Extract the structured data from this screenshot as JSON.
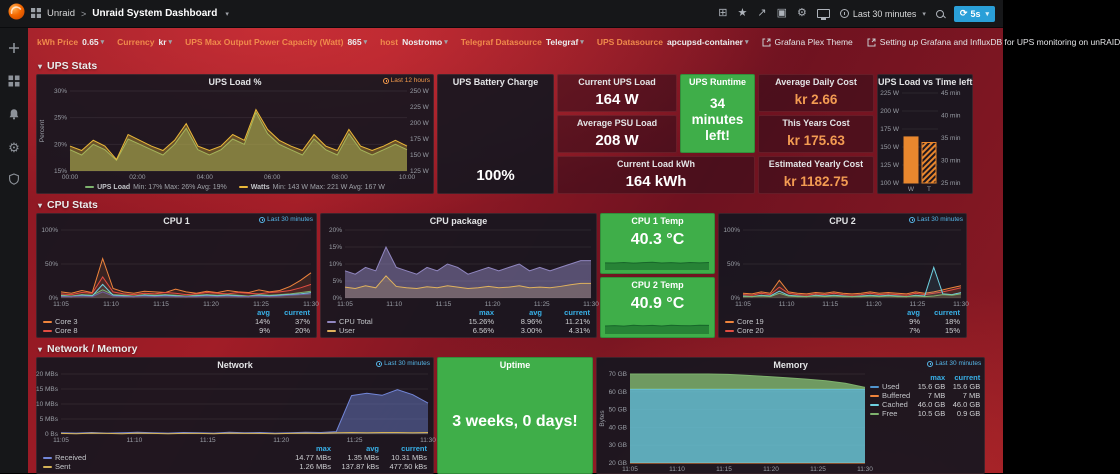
{
  "nav": {
    "app": "Unraid",
    "title": "Unraid System Dashboard",
    "time_range": "Last 30 minutes",
    "refresh": "5s"
  },
  "icons": {
    "caret": "▾",
    "chevron": "▾",
    "star": "★",
    "share": "↗",
    "gear": "⚙",
    "add_panel": "⊞",
    "save": "▣",
    "refresh": "⟳",
    "sep": ">"
  },
  "variables": [
    {
      "label": "kWh Price",
      "value": "0.65"
    },
    {
      "label": "Currency",
      "value": "kr"
    },
    {
      "label": "UPS Max Output Power Capacity (Watt)",
      "value": "865"
    },
    {
      "label": "host",
      "value": "Nostromo"
    },
    {
      "label": "Telegraf Datasource",
      "value": "Telegraf"
    },
    {
      "label": "UPS Datasource",
      "value": "apcupsd-container"
    }
  ],
  "links": [
    {
      "label": "Grafana Plex Theme"
    },
    {
      "label": "Setting up Grafana and InfluxDB for UPS monitoring on unRAID"
    }
  ],
  "rows": {
    "ups": "UPS Stats",
    "cpu": "CPU Stats",
    "net": "Network / Memory"
  },
  "panels": {
    "ups_load": {
      "title": "UPS Load %",
      "badge": "Last 12 hours",
      "legend": [
        {
          "name": "UPS Load",
          "color": "#7eb26d",
          "stats": "Min: 17% Max: 26% Avg: 19%"
        },
        {
          "name": "Watts",
          "color": "#eab839",
          "stats": "Min: 143 W Max: 221 W Avg: 167 W"
        }
      ]
    },
    "battery": {
      "title": "UPS Battery Charge",
      "value": "100%"
    },
    "current_load": {
      "title": "Current UPS Load",
      "value": "164 W"
    },
    "runtime": {
      "title": "UPS Runtime",
      "value": "34 minutes left!"
    },
    "psu_load": {
      "title": "Average PSU Load",
      "value": "208 W"
    },
    "load_kwh": {
      "title": "Current Load kWh",
      "value": "164 kWh"
    },
    "daily_cost": {
      "title": "Average Daily Cost",
      "value": "kr 2.66"
    },
    "years_cost": {
      "title": "This Years Cost",
      "value": "kr 175.63"
    },
    "yearly_est": {
      "title": "Estimated Yearly Cost",
      "value": "kr 1182.75"
    },
    "load_time": {
      "title": "UPS Load vs Time left"
    },
    "cpu1": {
      "title": "CPU 1",
      "badge": "Last 30 minutes",
      "legend_headers": [
        "avg",
        "current"
      ],
      "legend": [
        {
          "name": "Core 3",
          "color": "#ef843c",
          "vals": [
            "14%",
            "37%"
          ]
        },
        {
          "name": "Core 8",
          "color": "#e24d42",
          "vals": [
            "9%",
            "20%"
          ]
        }
      ]
    },
    "cpu_pkg": {
      "title": "CPU package",
      "legend_headers": [
        "max",
        "avg",
        "current"
      ],
      "legend": [
        {
          "name": "CPU Total",
          "color": "#9187c1",
          "vals": [
            "15.26%",
            "8.96%",
            "11.21%"
          ]
        },
        {
          "name": "User",
          "color": "#e0b25d",
          "vals": [
            "6.56%",
            "3.00%",
            "4.31%"
          ]
        }
      ]
    },
    "cpu1_temp": {
      "title": "CPU 1 Temp",
      "value": "40.3 °C"
    },
    "cpu2_temp": {
      "title": "CPU 2 Temp",
      "value": "40.9 °C"
    },
    "cpu2": {
      "title": "CPU 2",
      "badge": "Last 30 minutes",
      "legend_headers": [
        "avg",
        "current"
      ],
      "legend": [
        {
          "name": "Core 19",
          "color": "#ef843c",
          "vals": [
            "9%",
            "18%"
          ]
        },
        {
          "name": "Core 20",
          "color": "#e24d42",
          "vals": [
            "7%",
            "15%"
          ]
        }
      ]
    },
    "network": {
      "title": "Network",
      "badge": "Last 30 minutes",
      "legend_headers": [
        "max",
        "avg",
        "current"
      ],
      "legend": [
        {
          "name": "Received",
          "color": "#7286d8",
          "vals": [
            "14.77 MBs",
            "1.35 MBs",
            "10.31 MBs"
          ]
        },
        {
          "name": "Sent",
          "color": "#d4b257",
          "vals": [
            "1.26 MBs",
            "137.87 kBs",
            "477.50 kBs"
          ]
        }
      ]
    },
    "uptime": {
      "title": "Uptime",
      "value": "3 weeks, 0 days!"
    },
    "memory": {
      "title": "Memory",
      "badge": "Last 30 minutes",
      "legend_headers": [
        "max",
        "current"
      ],
      "legend": [
        {
          "name": "Used",
          "color": "#5195ce",
          "vals": [
            "15.6 GB",
            "15.6 GB"
          ]
        },
        {
          "name": "Buffered",
          "color": "#ef843c",
          "vals": [
            "7 MB",
            "7 MB"
          ]
        },
        {
          "name": "Cached",
          "color": "#6ed0e0",
          "vals": [
            "46.0 GB",
            "46.0 GB"
          ]
        },
        {
          "name": "Free",
          "color": "#7eb26d",
          "vals": [
            "10.5 GB",
            "0.9 GB"
          ]
        }
      ]
    }
  },
  "colors": {
    "accent_orange": "#eb7b18",
    "green": "#3fae49",
    "badge_blue": "#56b6e8",
    "background_red": "#8a1722"
  },
  "chart_data": {
    "ups_load": {
      "type": "area",
      "title": "UPS Load %",
      "ylabel": "Percent",
      "x_labels": [
        "00:00",
        "02:00",
        "04:00",
        "06:00",
        "08:00",
        "10:00"
      ],
      "axes": {
        "left": {
          "min": 15,
          "max": 30,
          "ticks": [
            "15%",
            "20%",
            "25%",
            "30%"
          ]
        },
        "right": {
          "min": 125,
          "max": 250,
          "ticks": [
            "125 W",
            "150 W",
            "175 W",
            "200 W",
            "225 W",
            "250 W"
          ]
        }
      },
      "series": [
        {
          "name": "UPS Load",
          "axis": "left",
          "color": "#7eb26d",
          "fill": 0.45,
          "points": [
            19,
            18,
            20,
            19,
            17,
            21,
            20,
            19,
            18,
            20,
            23,
            19,
            18,
            19,
            21,
            20,
            26,
            22,
            20,
            19,
            18,
            21,
            19,
            18,
            22,
            19,
            18,
            19,
            20,
            19
          ]
        },
        {
          "name": "Watts",
          "axis": "right",
          "color": "#eab839",
          "fill": 0.35,
          "points": [
            164,
            157,
            173,
            164,
            143,
            182,
            173,
            164,
            157,
            173,
            199,
            164,
            157,
            164,
            182,
            173,
            221,
            190,
            173,
            164,
            157,
            182,
            164,
            157,
            190,
            164,
            157,
            164,
            173,
            164
          ]
        }
      ]
    },
    "battery": {
      "type": "gauge",
      "min": 0,
      "max": 100,
      "value": 100,
      "ticks": [
        "0",
        "50",
        "100"
      ],
      "color": "#3fae49"
    },
    "load_time": {
      "type": "bar",
      "color": "#e8872e",
      "axes": {
        "left": {
          "min": 100,
          "max": 225,
          "ticks": [
            "100 W",
            "125 W",
            "150 W",
            "175 W",
            "200 W",
            "225 W"
          ]
        },
        "right": {
          "min": 25,
          "max": 45,
          "ticks": [
            "25 min",
            "30 min",
            "35 min",
            "40 min",
            "45 min"
          ]
        }
      },
      "bars": [
        {
          "label": "W",
          "value": 164,
          "axis": "left"
        },
        {
          "label": "T",
          "value": 34,
          "axis": "right",
          "striped": true
        }
      ]
    },
    "cpu1": {
      "type": "area",
      "x_labels": [
        "11:05",
        "11:10",
        "11:15",
        "11:20",
        "11:25",
        "11:30"
      ],
      "axes": {
        "left": {
          "min": 0,
          "max": 100,
          "ticks": [
            "0%",
            "50%",
            "100%"
          ]
        }
      },
      "series": [
        {
          "name": "Core 3",
          "color": "#ef843c",
          "fill": 0.12,
          "points": [
            9,
            7,
            11,
            8,
            58,
            14,
            9,
            7,
            10,
            9,
            8,
            13,
            9,
            7,
            10,
            8,
            11,
            9,
            8,
            12,
            9,
            11,
            17,
            26,
            37
          ]
        },
        {
          "name": "Core 8",
          "color": "#e24d42",
          "fill": 0.12,
          "points": [
            6,
            5,
            8,
            7,
            31,
            9,
            6,
            5,
            7,
            6,
            8,
            7,
            5,
            6,
            8,
            7,
            6,
            8,
            7,
            6,
            8,
            9,
            11,
            15,
            20
          ]
        },
        {
          "color": "#7eb26d",
          "fill": 0.1,
          "points": [
            4,
            3,
            5,
            4,
            12,
            5,
            4,
            3,
            5,
            4,
            5,
            4,
            3,
            4,
            5,
            4,
            5,
            4,
            3,
            5,
            4,
            5,
            6,
            8,
            10
          ]
        },
        {
          "color": "#6ed0e0",
          "fill": 0.1,
          "points": [
            3,
            2,
            4,
            3,
            20,
            4,
            3,
            2,
            4,
            3,
            4,
            3,
            2,
            3,
            4,
            3,
            4,
            3,
            2,
            4,
            3,
            4,
            5,
            6,
            8
          ]
        },
        {
          "color": "#705da0",
          "fill": 0.1,
          "points": [
            2,
            2,
            3,
            2,
            9,
            3,
            2,
            2,
            3,
            2,
            3,
            2,
            2,
            2,
            3,
            2,
            3,
            2,
            2,
            3,
            2,
            3,
            4,
            5,
            6
          ]
        }
      ]
    },
    "cpu_pkg": {
      "type": "area",
      "x_labels": [
        "11:05",
        "11:10",
        "11:15",
        "11:20",
        "11:25",
        "11:30"
      ],
      "axes": {
        "left": {
          "min": 0,
          "max": 20,
          "ticks": [
            "0%",
            "5%",
            "10%",
            "15%",
            "20%"
          ]
        }
      },
      "series": [
        {
          "name": "CPU Total",
          "color": "#9187c1",
          "fill": 0.5,
          "points": [
            8,
            7,
            9,
            8,
            15,
            9,
            8,
            7,
            9,
            8,
            10,
            9,
            7,
            8,
            9,
            8,
            9,
            10,
            8,
            9,
            8,
            9,
            10,
            11,
            11
          ]
        },
        {
          "name": "User",
          "color": "#e0b25d",
          "fill": 0.2,
          "points": [
            3.2,
            2.8,
            3.6,
            3,
            6.5,
            3.4,
            3,
            2.8,
            3.3,
            3,
            3.6,
            3.2,
            2.8,
            3,
            3.4,
            3,
            3.2,
            3.6,
            3,
            3.2,
            3,
            3.4,
            3.9,
            4.3,
            4.3
          ]
        }
      ]
    },
    "cpu2": {
      "type": "area",
      "x_labels": [
        "11:05",
        "11:10",
        "11:15",
        "11:20",
        "11:25",
        "11:30"
      ],
      "axes": {
        "left": {
          "min": 0,
          "max": 100,
          "ticks": [
            "0%",
            "50%",
            "100%"
          ]
        }
      },
      "series": [
        {
          "name": "Core 19",
          "color": "#ef843c",
          "fill": 0.12,
          "points": [
            7,
            6,
            9,
            7,
            26,
            9,
            7,
            6,
            8,
            7,
            9,
            7,
            6,
            7,
            9,
            7,
            8,
            7,
            6,
            9,
            7,
            9,
            12,
            15,
            18
          ]
        },
        {
          "name": "Core 20",
          "color": "#e24d42",
          "fill": 0.12,
          "points": [
            5,
            4,
            7,
            5,
            16,
            7,
            5,
            4,
            6,
            5,
            7,
            5,
            4,
            5,
            7,
            5,
            6,
            5,
            4,
            7,
            5,
            7,
            9,
            12,
            15
          ]
        },
        {
          "color": "#6ed0e0",
          "fill": 0.1,
          "points": [
            3,
            2,
            4,
            3,
            10,
            4,
            3,
            2,
            4,
            3,
            4,
            3,
            2,
            3,
            4,
            3,
            4,
            3,
            2,
            4,
            3,
            45,
            6,
            5,
            8
          ]
        },
        {
          "color": "#7eb26d",
          "fill": 0.1,
          "points": [
            2,
            2,
            3,
            2,
            7,
            3,
            2,
            2,
            3,
            2,
            3,
            2,
            2,
            2,
            3,
            2,
            3,
            2,
            2,
            3,
            2,
            3,
            5,
            4,
            6
          ]
        }
      ]
    },
    "cpu1_temp": {
      "type": "area",
      "axes": {
        "left": {
          "min": 36,
          "max": 44
        }
      },
      "series": [
        {
          "name": "CPU 1 Temp",
          "color": "#17662a",
          "fill": 0.6,
          "points": [
            40.1,
            40,
            40.3,
            39.9,
            40.2,
            40.4,
            40,
            40.2,
            39.9,
            40.3,
            40.1,
            40.3
          ]
        }
      ]
    },
    "cpu2_temp": {
      "type": "area",
      "axes": {
        "left": {
          "min": 36,
          "max": 44
        }
      },
      "series": [
        {
          "name": "CPU 2 Temp",
          "color": "#17662a",
          "fill": 0.6,
          "points": [
            40.6,
            40.8,
            40.5,
            41,
            40.7,
            40.9,
            40.6,
            41,
            40.8,
            40.7,
            41,
            40.9
          ]
        }
      ]
    },
    "network": {
      "type": "area",
      "x_labels": [
        "11:05",
        "11:10",
        "11:15",
        "11:20",
        "11:25",
        "11:30"
      ],
      "axes": {
        "left": {
          "min": 0,
          "max": 20,
          "ticks": [
            "0 Bs",
            "5 MBs",
            "10 MBs",
            "15 MBs",
            "20 MBs"
          ]
        }
      },
      "series": [
        {
          "name": "Received",
          "color": "#7286d8",
          "fill": 0.45,
          "points": [
            0.4,
            0.3,
            0.5,
            0.3,
            0.4,
            0.6,
            0.4,
            0.3,
            0.5,
            0.4,
            0.3,
            0.6,
            0.4,
            0.5,
            0.3,
            0.4,
            0.6,
            0.5,
            0.8,
            12.8,
            13.6,
            12.9,
            14.8,
            13.1,
            10.3
          ]
        },
        {
          "name": "Sent",
          "color": "#d4b257",
          "fill": 0.25,
          "points": [
            0.2,
            0.1,
            0.3,
            0.2,
            0.1,
            0.3,
            0.2,
            0.1,
            0.2,
            0.2,
            0.1,
            0.3,
            0.2,
            0.2,
            0.1,
            0.2,
            0.3,
            0.2,
            0.4,
            0.5,
            0.4,
            0.5,
            0.5,
            0.4,
            0.5
          ]
        }
      ]
    },
    "memory": {
      "type": "area",
      "stacked": true,
      "ylabel": "Bytes",
      "x_labels": [
        "11:05",
        "11:10",
        "11:15",
        "11:20",
        "11:25",
        "11:30"
      ],
      "axes": {
        "left": {
          "min": 20,
          "max": 70,
          "ticks": [
            "20 GB",
            "30 GB",
            "40 GB",
            "50 GB",
            "60 GB",
            "70 GB"
          ]
        }
      },
      "series": [
        {
          "name": "Used",
          "color": "#5195ce",
          "fill": 0.85,
          "points": [
            15.6,
            15.6,
            15.6,
            15.6,
            15.6,
            15.6,
            15.6,
            15.6,
            15.6,
            15.6,
            15.6,
            15.6,
            15.6
          ]
        },
        {
          "name": "Buffered",
          "color": "#ef843c",
          "fill": 0.8,
          "points": [
            0.007,
            0.007,
            0.007,
            0.007,
            0.007,
            0.007,
            0.007,
            0.007,
            0.007,
            0.007,
            0.007,
            0.007,
            0.007
          ]
        },
        {
          "name": "Cached",
          "color": "#6ed0e0",
          "fill": 0.8,
          "points": [
            46,
            46,
            46,
            46,
            46,
            46,
            46,
            46,
            46,
            46,
            46,
            46,
            46
          ]
        },
        {
          "name": "Free",
          "color": "#7eb26d",
          "fill": 0.85,
          "points": [
            10.5,
            10.2,
            9.8,
            9.3,
            8.8,
            8.2,
            7.6,
            7,
            6.3,
            5.5,
            4.6,
            3.2,
            0.9
          ]
        }
      ]
    }
  }
}
